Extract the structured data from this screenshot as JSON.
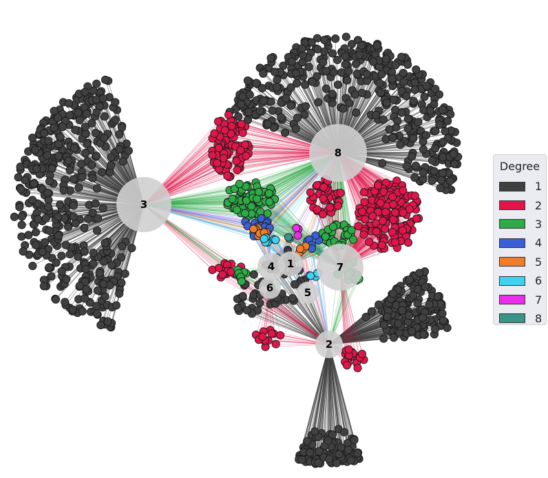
{
  "legend": {
    "title": "Degree",
    "items": [
      {
        "label": "1",
        "color": "#404040"
      },
      {
        "label": "2",
        "color": "#e0164a"
      },
      {
        "label": "3",
        "color": "#2eaa47"
      },
      {
        "label": "4",
        "color": "#3a5fd4"
      },
      {
        "label": "5",
        "color": "#f07d2a"
      },
      {
        "label": "6",
        "color": "#3fd2f0"
      },
      {
        "label": "7",
        "color": "#ea2fea"
      },
      {
        "label": "8",
        "color": "#3a9488"
      }
    ]
  },
  "hubs": [
    {
      "label": "3"
    },
    {
      "label": "8"
    },
    {
      "label": "4"
    },
    {
      "label": "1"
    },
    {
      "label": "7"
    },
    {
      "label": "6"
    },
    {
      "label": "5"
    },
    {
      "label": "2"
    }
  ]
}
